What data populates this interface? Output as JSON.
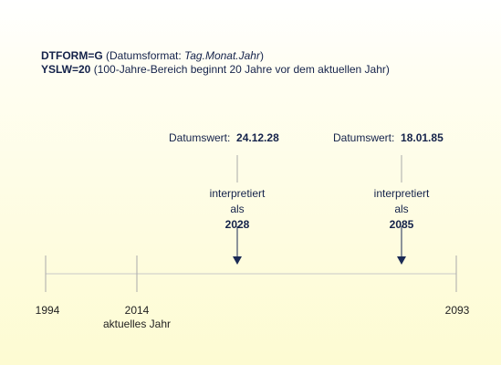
{
  "header": {
    "line1": {
      "key": "DTFORM=G",
      "desc_prefix": "(Datumsformat: ",
      "desc_italic": "Tag.Monat.Jahr",
      "desc_suffix": ")"
    },
    "line2": {
      "key": "YSLW=20",
      "desc": "(100-Jahre-Bereich beginnt 20 Jahre vor dem aktuellen Jahr)"
    }
  },
  "examples": [
    {
      "label": "Datumswert:",
      "value": "24.12.28",
      "interp1": "interpretiert",
      "interp2": "als",
      "result": "2028"
    },
    {
      "label": "Datumswert:",
      "value": "18.01.85",
      "interp1": "interpretiert",
      "interp2": "als",
      "result": "2085"
    }
  ],
  "timeline": {
    "start": "1994",
    "current": "2014",
    "current_caption": "aktuelles Jahr",
    "end": "2093"
  },
  "colors": {
    "text": "#14224a",
    "line": "#aaaaaa",
    "arrow": "#1a2a55"
  }
}
